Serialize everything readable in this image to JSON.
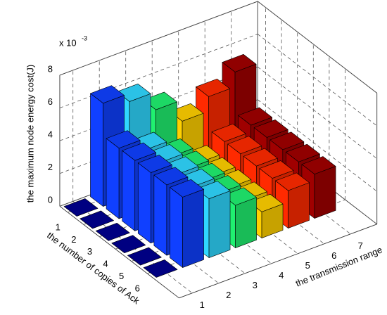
{
  "chart_data": {
    "type": "bar3",
    "zlabel": "the maximum node energy cost(J)",
    "ylabel": "the number of copies of Ack",
    "xlabel": "the transmission range",
    "multiplier": "x 10",
    "multiplier_exponent": "-3",
    "xlim": [
      0.5,
      8
    ],
    "ylim": [
      0.5,
      8
    ],
    "zlim": [
      0,
      8
    ],
    "xticks": [
      1,
      2,
      3,
      4,
      5,
      6,
      7
    ],
    "yticks": [
      1,
      2,
      3,
      4,
      5,
      6
    ],
    "zticks": [
      0,
      2,
      4,
      6,
      8
    ],
    "grid": true,
    "series": [
      {
        "color": "#00008f",
        "values": [
          0,
          0,
          0,
          0,
          0,
          0
        ]
      },
      {
        "color": "#1040ff",
        "values": [
          6.3,
          4.3,
          4.3,
          4.3,
          4.3,
          4.3
        ]
      },
      {
        "color": "#30d8ff",
        "values": [
          5.8,
          3.6,
          3.6,
          3.6,
          3.6,
          3.6
        ]
      },
      {
        "color": "#20f070",
        "values": [
          4.7,
          2.6,
          2.6,
          2.6,
          2.6,
          2.6
        ]
      },
      {
        "color": "#ffd000",
        "values": [
          3.4,
          1.6,
          1.6,
          1.6,
          1.6,
          1.6
        ]
      },
      {
        "color": "#ff2a00",
        "values": [
          4.3,
          2.3,
          2.3,
          2.3,
          2.3,
          2.3
        ]
      },
      {
        "color": "#a00000",
        "values": [
          5.2,
          2.7,
          2.7,
          2.7,
          2.7,
          2.7
        ]
      }
    ]
  }
}
